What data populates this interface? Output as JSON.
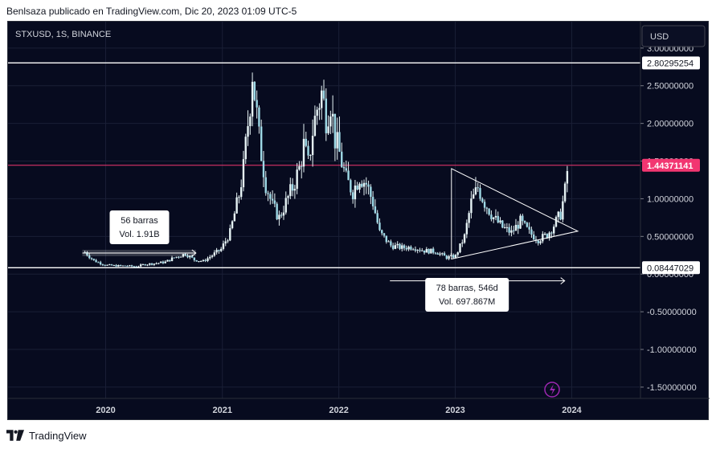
{
  "header": {
    "attribution": "Benlsaza publicado en TradingView.com, Dic 20, 2023 01:09 UTC-5"
  },
  "footer": {
    "brand": "TradingView",
    "logo_icon": "tradingview-logo-icon"
  },
  "colors": {
    "background": "#070b1f",
    "candle": "#e6f3f5",
    "price_line": "#f23671",
    "level_line": "#ffffff",
    "axis_text": "#d1d4dc",
    "event_icon": "#9c27b0"
  },
  "chart_data": {
    "type": "candlestick",
    "symbol_label": "STXUSD, 1S, BINANCE",
    "currency_label": "USD",
    "x_ticks": [
      "2020",
      "2021",
      "2022",
      "2023",
      "2024"
    ],
    "y_ticks": [
      "3.00000000",
      "2.50000000",
      "2.00000000",
      "1.50000000",
      "1.00000000",
      "0.50000000",
      "0.00000000",
      "-0.50000000",
      "-1.00000000",
      "-1.50000000"
    ],
    "ylim": [
      -1.65,
      3.35
    ],
    "xlim": [
      "2019-03-01",
      "2024-08-01"
    ],
    "horizontal_levels": [
      {
        "value": 2.80295254,
        "label": "2.80295254",
        "kind": "level"
      },
      {
        "value": 1.44371141,
        "label": "1.44371141",
        "kind": "current-price"
      },
      {
        "value": 0.08447029,
        "label": "0.08447029",
        "kind": "level"
      }
    ],
    "series": [
      {
        "points": [
          [
            "2019-10-28",
            0.29
          ],
          [
            "2019-11-25",
            0.18
          ],
          [
            "2019-12-30",
            0.12
          ],
          [
            "2020-02-03",
            0.11
          ],
          [
            "2020-03-02",
            0.11
          ],
          [
            "2020-04-06",
            0.1
          ],
          [
            "2020-05-04",
            0.13
          ],
          [
            "2020-06-01",
            0.14
          ],
          [
            "2020-07-06",
            0.16
          ],
          [
            "2020-08-03",
            0.22
          ],
          [
            "2020-09-07",
            0.27
          ],
          [
            "2020-10-05",
            0.19
          ],
          [
            "2020-11-02",
            0.17
          ],
          [
            "2020-11-30",
            0.25
          ],
          [
            "2020-12-28",
            0.33
          ],
          [
            "2021-01-25",
            0.55
          ],
          [
            "2021-02-22",
            1.05
          ],
          [
            "2021-03-08",
            1.4
          ],
          [
            "2021-03-29",
            2.3
          ],
          [
            "2021-04-05",
            2.7
          ],
          [
            "2021-04-26",
            1.8
          ],
          [
            "2021-05-17",
            1.2
          ],
          [
            "2021-06-07",
            0.9
          ],
          [
            "2021-06-28",
            0.75
          ],
          [
            "2021-07-19",
            0.95
          ],
          [
            "2021-08-09",
            1.15
          ],
          [
            "2021-08-30",
            1.4
          ],
          [
            "2021-09-13",
            1.7
          ],
          [
            "2021-09-27",
            1.45
          ],
          [
            "2021-10-11",
            1.9
          ],
          [
            "2021-10-25",
            2.2
          ],
          [
            "2021-11-08",
            2.4
          ],
          [
            "2021-11-22",
            2.1
          ],
          [
            "2021-12-06",
            2.3
          ],
          [
            "2021-12-20",
            1.8
          ],
          [
            "2022-01-03",
            1.6
          ],
          [
            "2022-01-24",
            1.25
          ],
          [
            "2022-02-14",
            1.1
          ],
          [
            "2022-03-07",
            1.3
          ],
          [
            "2022-03-28",
            1.2
          ],
          [
            "2022-04-18",
            0.95
          ],
          [
            "2022-05-09",
            0.55
          ],
          [
            "2022-06-13",
            0.38
          ],
          [
            "2022-07-18",
            0.35
          ],
          [
            "2022-08-22",
            0.36
          ],
          [
            "2022-09-26",
            0.31
          ],
          [
            "2022-10-31",
            0.3
          ],
          [
            "2022-12-05",
            0.22
          ],
          [
            "2023-01-02",
            0.24
          ],
          [
            "2023-01-30",
            0.5
          ],
          [
            "2023-02-20",
            0.95
          ],
          [
            "2023-03-13",
            1.15
          ],
          [
            "2023-04-03",
            0.95
          ],
          [
            "2023-05-01",
            0.75
          ],
          [
            "2023-05-29",
            0.62
          ],
          [
            "2023-06-26",
            0.55
          ],
          [
            "2023-07-24",
            0.7
          ],
          [
            "2023-08-21",
            0.55
          ],
          [
            "2023-09-18",
            0.46
          ],
          [
            "2023-10-16",
            0.52
          ],
          [
            "2023-11-06",
            0.65
          ],
          [
            "2023-11-27",
            0.8
          ],
          [
            "2023-12-11",
            1.1
          ],
          [
            "2023-12-20",
            1.44
          ]
        ]
      }
    ],
    "annotations": {
      "range_1": {
        "bars": "56 barras",
        "volume": "Vol. 1.91B"
      },
      "range_2": {
        "bars": "78 barras, 546d",
        "volume": "Vol. 697.867M"
      }
    },
    "triangle": [
      [
        "2022-12-20",
        0.2
      ],
      [
        "2024-01-20",
        0.57
      ],
      [
        "2022-12-20",
        1.4
      ]
    ]
  }
}
